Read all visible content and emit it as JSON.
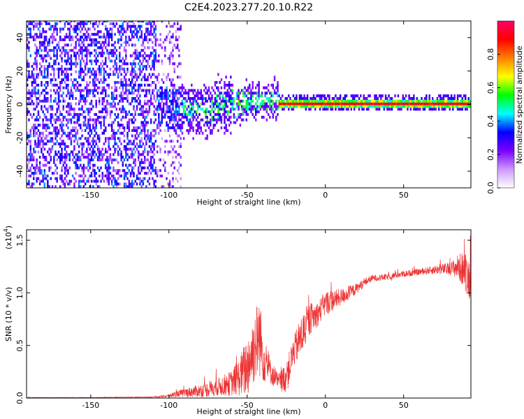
{
  "title": "C2E4.2023.277.20.10.R22",
  "chart_data": [
    {
      "type": "heatmap",
      "xlabel": "Height of straight line (km)",
      "ylabel": "Frequency (Hz)",
      "xlim": [
        -191,
        93
      ],
      "ylim": [
        -50,
        50
      ],
      "x_ticks": [
        -150,
        -100,
        -50,
        0,
        50
      ],
      "y_ticks": [
        -40,
        -20,
        0,
        20,
        40
      ],
      "colorbar": {
        "label": "Normalized spectral amplitude",
        "range": [
          0,
          1
        ],
        "ticks": [
          "0.0",
          "0.2",
          "0.4",
          "0.6",
          "0.8"
        ],
        "colormap": [
          "#ffffff",
          "#cc99ff",
          "#7a00ff",
          "#0000ff",
          "#00ffff",
          "#00ff00",
          "#ffff00",
          "#ff8000",
          "#ff0000",
          "#ff0066"
        ]
      },
      "structure": [
        {
          "region": "noise",
          "x_range": [
            -191,
            -92
          ],
          "freq_range": [
            -50,
            50
          ],
          "amplitude": "0.1-0.3 scattered"
        },
        {
          "region": "transition",
          "x_range": [
            -110,
            -30
          ],
          "freq_center": "0 to -10",
          "freq_spread": 15,
          "amplitude": "0.2-0.5"
        },
        {
          "region": "carrier",
          "x_range": [
            -30,
            93
          ],
          "freq_center": 0,
          "freq_spread": 2,
          "amplitude": "0.8-1.0"
        }
      ]
    },
    {
      "type": "line",
      "xlabel": "Height of straight line (km)",
      "ylabel": "SNR (10 * v/v)",
      "y_scale_label": "(x10",
      "y_scale_exp": "4",
      "xlim": [
        -191,
        93
      ],
      "ylim": [
        0,
        1.6
      ],
      "x_ticks": [
        -150,
        -100,
        -50,
        0,
        50
      ],
      "y_ticks": [
        "0.0",
        "0.5",
        "1.0",
        "1.5"
      ],
      "y_unit_multiplier": 10000,
      "color": "#ee3333",
      "series": [
        {
          "x": [
            -191,
            -150,
            -110,
            -100,
            -95,
            -85,
            -75,
            -70,
            -60,
            -55,
            -50,
            -45,
            -42,
            -40,
            -35,
            -30,
            -25,
            -20,
            -15,
            -10,
            -5,
            0,
            5,
            10,
            20,
            25,
            30,
            40,
            45,
            50,
            60,
            70,
            80,
            85,
            90,
            93
          ],
          "y": [
            0.005,
            0.005,
            0.01,
            0.02,
            0.04,
            0.06,
            0.08,
            0.1,
            0.14,
            0.2,
            0.3,
            0.5,
            0.6,
            0.4,
            0.25,
            0.15,
            0.2,
            0.45,
            0.6,
            0.75,
            0.8,
            0.9,
            0.93,
            0.96,
            1.04,
            1.1,
            1.14,
            1.15,
            1.17,
            1.18,
            1.2,
            1.22,
            1.23,
            1.25,
            1.2,
            1.1
          ],
          "noise_amplitude": [
            0.002,
            0.002,
            0.004,
            0.015,
            0.03,
            0.05,
            0.07,
            0.08,
            0.12,
            0.18,
            0.3,
            0.35,
            0.4,
            0.25,
            0.12,
            0.08,
            0.15,
            0.15,
            0.2,
            0.15,
            0.12,
            0.12,
            0.1,
            0.08,
            0.05,
            0.04,
            0.03,
            0.03,
            0.03,
            0.03,
            0.03,
            0.04,
            0.06,
            0.12,
            0.2,
            0.2
          ]
        }
      ]
    }
  ]
}
